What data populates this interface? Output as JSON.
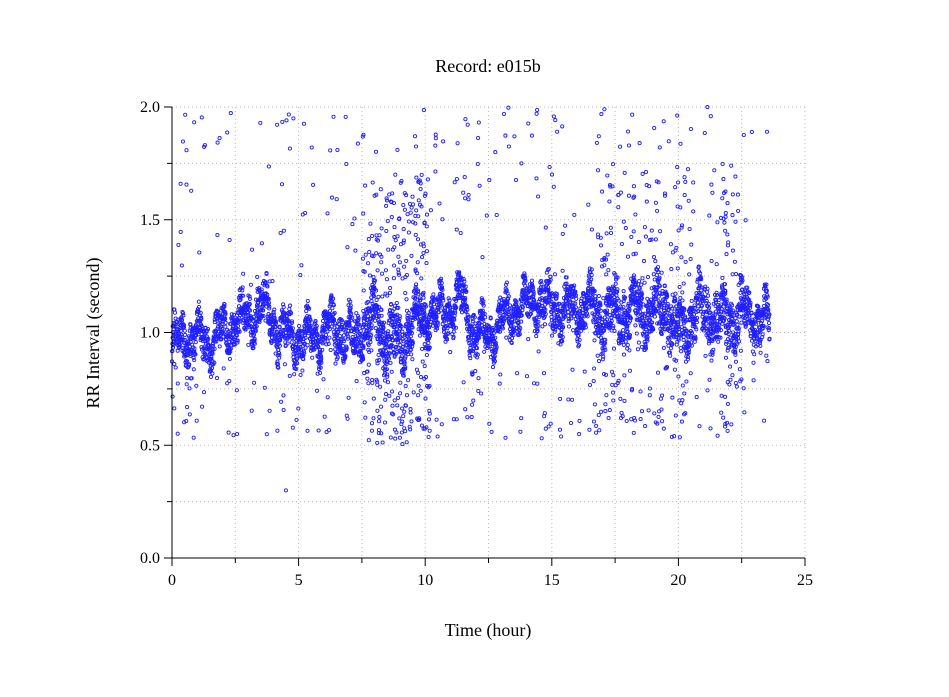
{
  "chart_data": {
    "type": "scatter",
    "title": "Record:  e015b",
    "xlabel": "Time (hour)",
    "ylabel": "RR Interval (second)",
    "xlim": [
      0,
      25
    ],
    "ylim": [
      0.0,
      2.0
    ],
    "xticks": [
      "0",
      "5",
      "10",
      "15",
      "20",
      "25"
    ],
    "yticks": [
      "0.0",
      "0.5",
      "1.0",
      "1.5",
      "2.0"
    ],
    "grid": true,
    "marker": "open-circle",
    "color": "#2020ff",
    "trend": {
      "x": [
        0,
        0.5,
        1,
        1.5,
        2,
        2.5,
        3,
        3.5,
        3.8,
        4.2,
        5,
        5.6,
        6,
        6.5,
        7,
        7.2,
        7.6,
        8,
        8.5,
        9,
        9.5,
        10,
        10.5,
        11,
        11.4,
        11.8,
        12,
        12.5,
        13,
        13.5,
        14,
        14.5,
        15,
        15.5,
        16,
        16.5,
        17,
        17.5,
        18,
        18.5,
        19,
        19.5,
        20,
        20.4,
        20.8,
        21.2,
        21.6,
        22,
        22.5,
        23,
        23.6
      ],
      "y": [
        0.95,
        0.98,
        0.97,
        0.96,
        1.0,
        1.05,
        1.07,
        1.12,
        1.1,
        1.0,
        0.98,
        0.97,
        0.99,
        1.02,
        1.0,
        0.95,
        1.05,
        1.05,
        0.98,
        0.95,
        1.05,
        1.08,
        1.07,
        1.1,
        1.15,
        1.05,
        0.98,
        1.0,
        1.05,
        1.1,
        1.12,
        1.15,
        1.12,
        1.1,
        1.1,
        1.12,
        1.05,
        1.08,
        1.1,
        1.1,
        1.1,
        1.12,
        1.0,
        1.05,
        1.1,
        1.08,
        1.05,
        1.05,
        1.1,
        1.05,
        1.05
      ]
    },
    "spread": {
      "x": [
        0,
        2,
        4,
        5,
        7,
        8,
        9,
        10,
        11,
        12,
        13,
        14,
        15,
        16,
        17,
        18,
        19,
        20,
        21,
        22,
        23,
        23.7
      ],
      "y": [
        0.08,
        0.07,
        0.08,
        0.07,
        0.08,
        0.1,
        0.1,
        0.08,
        0.08,
        0.08,
        0.07,
        0.07,
        0.08,
        0.08,
        0.1,
        0.1,
        0.1,
        0.1,
        0.1,
        0.1,
        0.08,
        0.08
      ]
    },
    "dense_series_samples": 4200,
    "outlier_bands": [
      {
        "x": [
          7.5,
          10.2
        ],
        "y": [
          0.5,
          1.7
        ],
        "count": 260
      },
      {
        "x": [
          16.8,
          20.5
        ],
        "y": [
          0.55,
          1.75
        ],
        "count": 170
      },
      {
        "x": [
          21.7,
          22.5
        ],
        "y": [
          0.55,
          1.7
        ],
        "count": 45
      },
      {
        "x": [
          0,
          23.6
        ],
        "y": [
          0.53,
          0.66
        ],
        "count": 90
      },
      {
        "x": [
          0,
          23.0
        ],
        "y": [
          1.8,
          2.0
        ],
        "count": 75
      },
      {
        "x": [
          0,
          23.0
        ],
        "y": [
          1.2,
          1.75
        ],
        "count": 110
      },
      {
        "x": [
          0,
          23.0
        ],
        "y": [
          0.66,
          0.85
        ],
        "count": 70
      }
    ],
    "isolated_points": [
      {
        "x": 4.5,
        "y": 0.3
      },
      {
        "x": 11.5,
        "y": 1.62
      },
      {
        "x": 13.8,
        "y": 1.75
      },
      {
        "x": 14.4,
        "y": 1.97
      },
      {
        "x": 23.5,
        "y": 1.89
      }
    ]
  }
}
